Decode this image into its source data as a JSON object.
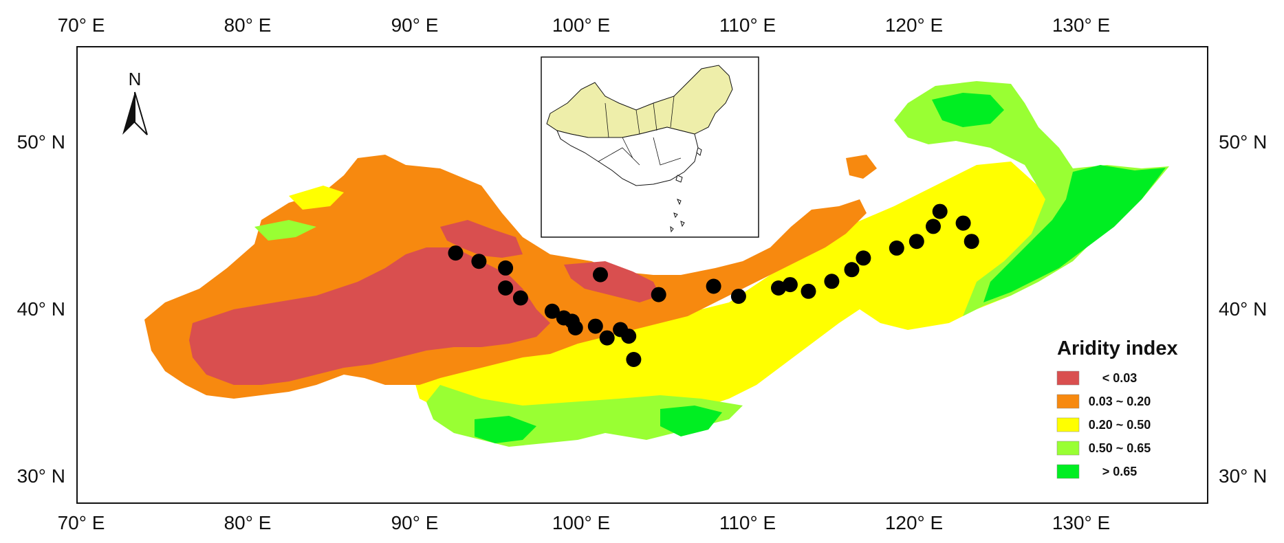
{
  "axes": {
    "top_ticks": [
      "70° E",
      "80° E",
      "90° E",
      "100° E",
      "110° E",
      "120° E",
      "130° E"
    ],
    "bottom_ticks": [
      "70° E",
      "80° E",
      "90° E",
      "100° E",
      "110° E",
      "120° E",
      "130° E"
    ],
    "left_ticks": [
      "50° N",
      "40° N",
      "30° N"
    ],
    "right_ticks": [
      "50° N",
      "40° N",
      "30° N"
    ],
    "lon_values": [
      70,
      80,
      90,
      100,
      110,
      120,
      130
    ],
    "lat_values": [
      50,
      40,
      30
    ],
    "lon_range": [
      70,
      138
    ],
    "lat_range": [
      28,
      56
    ]
  },
  "north_arrow": {
    "letter": "N",
    "icon": "north-arrow-icon"
  },
  "legend": {
    "title": "Aridity index",
    "entries": [
      {
        "label": "< 0.03",
        "color": "#d94f4f"
      },
      {
        "label": "0.03 ~ 0.20",
        "color": "#f7890f"
      },
      {
        "label": "0.20 ~ 0.50",
        "color": "#ffff00"
      },
      {
        "label": "0.50 ~ 0.65",
        "color": "#99ff33"
      },
      {
        "label": "> 0.65",
        "color": "#00ee22"
      }
    ]
  },
  "sites": [
    {
      "lon": 92.5,
      "lat": 43.3
    },
    {
      "lon": 93.9,
      "lat": 42.8
    },
    {
      "lon": 95.5,
      "lat": 42.4
    },
    {
      "lon": 95.5,
      "lat": 41.2
    },
    {
      "lon": 96.4,
      "lat": 40.6
    },
    {
      "lon": 98.3,
      "lat": 39.8
    },
    {
      "lon": 99.0,
      "lat": 39.4
    },
    {
      "lon": 99.5,
      "lat": 39.2
    },
    {
      "lon": 99.7,
      "lat": 38.8
    },
    {
      "lon": 100.9,
      "lat": 38.9
    },
    {
      "lon": 101.6,
      "lat": 38.2
    },
    {
      "lon": 102.4,
      "lat": 38.7
    },
    {
      "lon": 102.9,
      "lat": 38.3
    },
    {
      "lon": 103.2,
      "lat": 36.9
    },
    {
      "lon": 101.2,
      "lat": 42.0
    },
    {
      "lon": 104.7,
      "lat": 40.8
    },
    {
      "lon": 108.0,
      "lat": 41.3
    },
    {
      "lon": 109.5,
      "lat": 40.7
    },
    {
      "lon": 111.9,
      "lat": 41.2
    },
    {
      "lon": 112.6,
      "lat": 41.4
    },
    {
      "lon": 113.7,
      "lat": 41.0
    },
    {
      "lon": 115.1,
      "lat": 41.6
    },
    {
      "lon": 116.3,
      "lat": 42.3
    },
    {
      "lon": 117.0,
      "lat": 43.0
    },
    {
      "lon": 119.0,
      "lat": 43.6
    },
    {
      "lon": 120.2,
      "lat": 44.0
    },
    {
      "lon": 121.2,
      "lat": 44.9
    },
    {
      "lon": 121.6,
      "lat": 45.8
    },
    {
      "lon": 123.0,
      "lat": 45.1
    },
    {
      "lon": 123.5,
      "lat": 44.0
    }
  ],
  "colors": {
    "site_marker": "#000000",
    "inset_fill": "#eeeeaa",
    "frame": "#111111"
  }
}
